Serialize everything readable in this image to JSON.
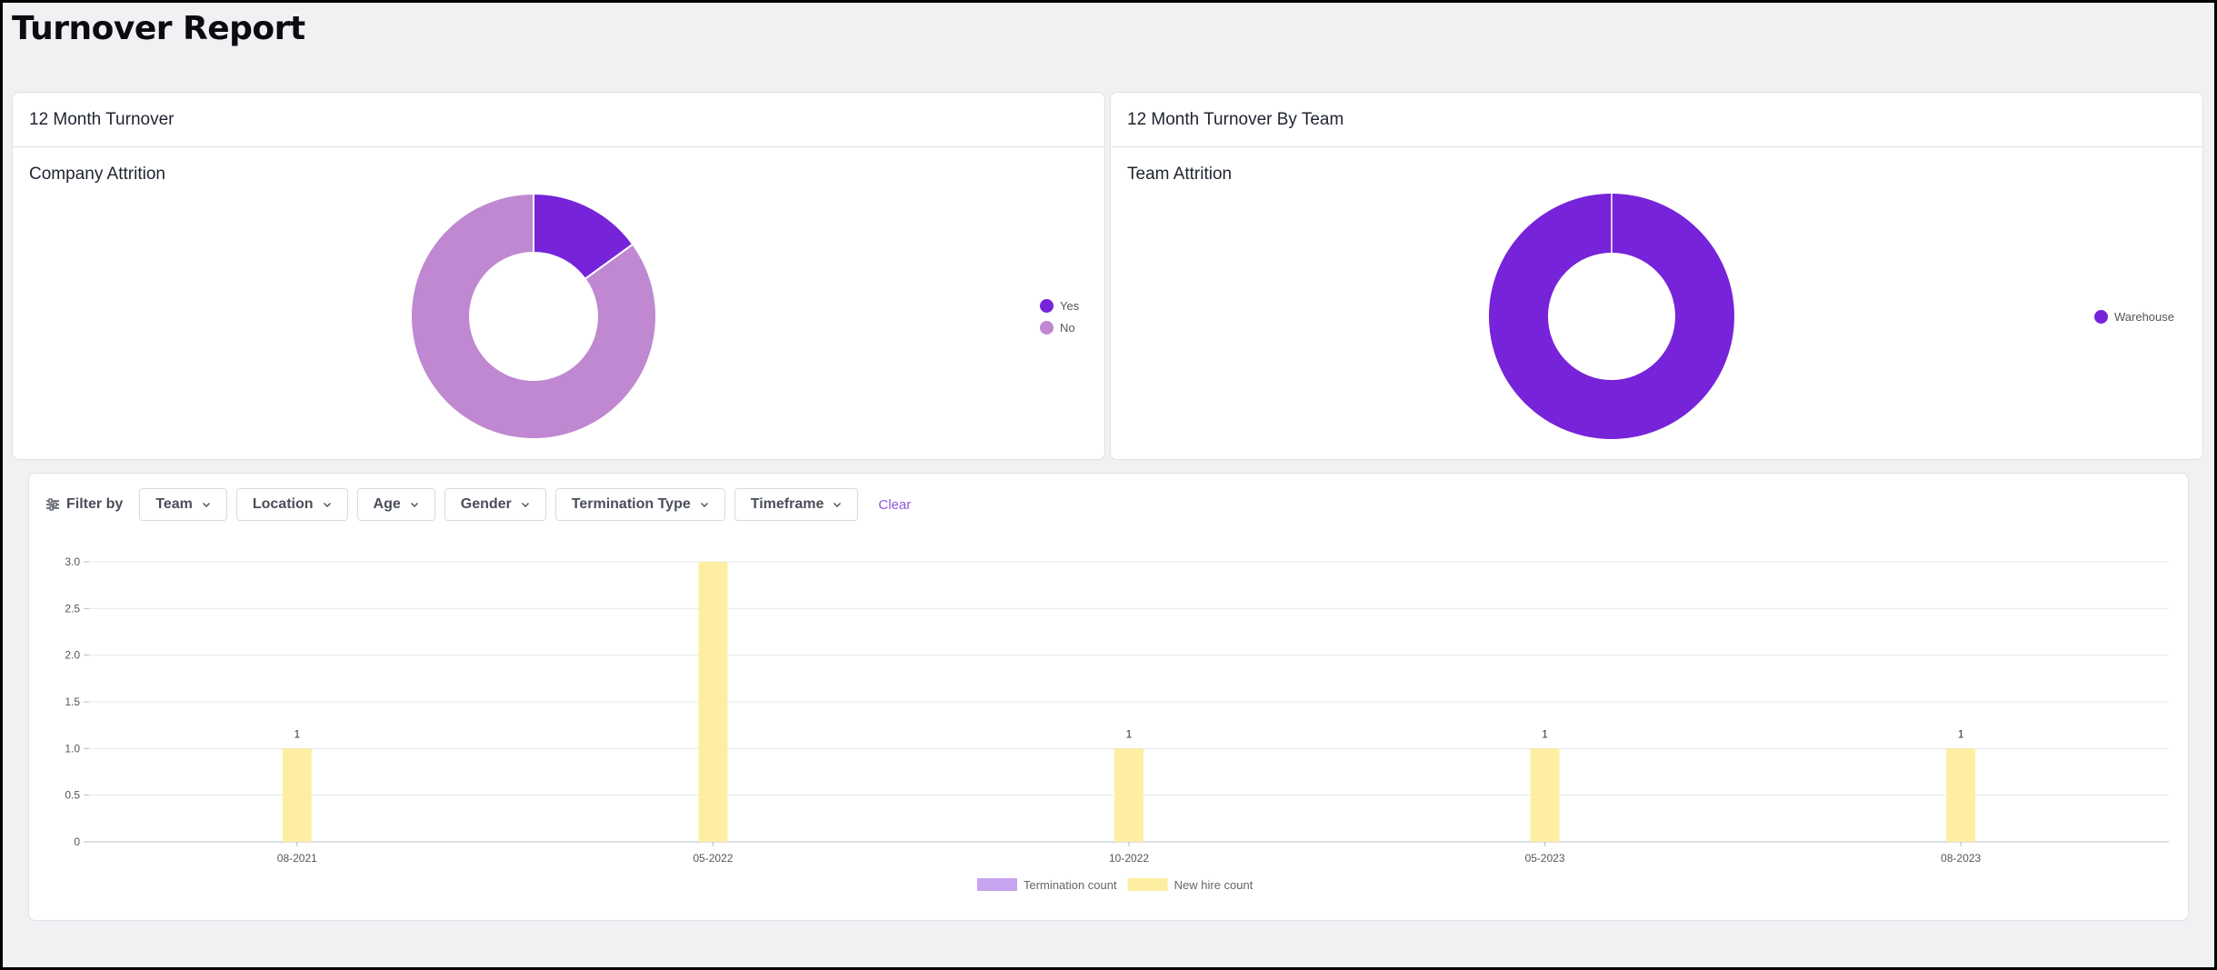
{
  "page": {
    "title": "Turnover Report"
  },
  "cards": {
    "company": {
      "header": "12 Month Turnover",
      "subtitle": "Company Attrition",
      "legend": [
        {
          "label": "Yes",
          "color": "#7623d9"
        },
        {
          "label": "No",
          "color": "#bf88d1"
        }
      ]
    },
    "team": {
      "header": "12 Month Turnover By Team",
      "subtitle": "Team Attrition",
      "legend": [
        {
          "label": "Warehouse",
          "color": "#7623d9"
        }
      ]
    }
  },
  "filters": {
    "label": "Filter by",
    "buttons": [
      "Team",
      "Location",
      "Age",
      "Gender",
      "Termination Type",
      "Timeframe"
    ],
    "clear": "Clear"
  },
  "chart_data": [
    {
      "type": "pie",
      "title": "Company Attrition",
      "labels": [
        "Yes",
        "No"
      ],
      "values": [
        0.15,
        0.85
      ],
      "colors": [
        "#7623d9",
        "#bf88d1"
      ],
      "donut": true
    },
    {
      "type": "pie",
      "title": "Team Attrition",
      "labels": [
        "Warehouse"
      ],
      "values": [
        1
      ],
      "colors": [
        "#7623d9"
      ],
      "donut": true
    },
    {
      "type": "bar",
      "categories": [
        "08-2021",
        "05-2022",
        "10-2022",
        "05-2023",
        "08-2023"
      ],
      "series": [
        {
          "name": "Termination count",
          "values": [
            0,
            0,
            0,
            0,
            0
          ],
          "color": "#c7a4f0"
        },
        {
          "name": "New hire count",
          "values": [
            1,
            3,
            1,
            1,
            1
          ],
          "color": "#fdeea2"
        }
      ],
      "data_labels": [
        "1",
        "",
        "1",
        "1",
        "1"
      ],
      "ylim": [
        0,
        3
      ],
      "yticks": [
        "0",
        "0.5",
        "1.0",
        "1.5",
        "2.0",
        "2.5",
        "3.0"
      ],
      "grid": true,
      "legend_position": "bottom"
    }
  ]
}
